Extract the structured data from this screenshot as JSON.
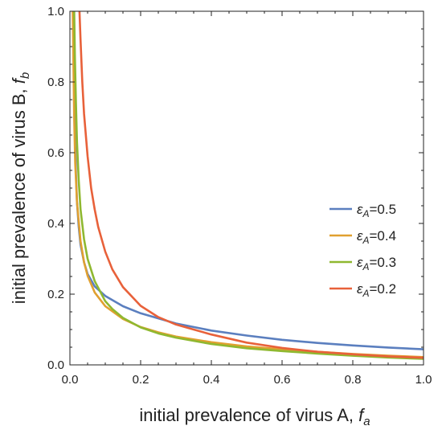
{
  "chart_data": {
    "type": "line",
    "title": "",
    "xlabel": "initial prevalence of virus A, ",
    "xlabel_var": "f",
    "xlabel_sub": "a",
    "ylabel": "initial prevalence of virus B, ",
    "ylabel_var": "f",
    "ylabel_sub": "b",
    "xlim": [
      0,
      1
    ],
    "ylim": [
      0,
      1
    ],
    "x_ticks": [
      "0.0",
      "0.2",
      "0.4",
      "0.6",
      "0.8",
      "1.0"
    ],
    "y_ticks": [
      "0.0",
      "0.2",
      "0.4",
      "0.6",
      "0.8",
      "1.0"
    ],
    "grid": false,
    "legend_position": "center-right",
    "series": [
      {
        "name": "0.5",
        "legend_symbol": "ε",
        "legend_sub": "A",
        "color": "#5b7fbf",
        "points": [
          [
            0.011,
            1.0
          ],
          [
            0.012,
            0.82
          ],
          [
            0.014,
            0.66
          ],
          [
            0.017,
            0.54
          ],
          [
            0.02,
            0.46
          ],
          [
            0.025,
            0.39
          ],
          [
            0.03,
            0.34
          ],
          [
            0.04,
            0.29
          ],
          [
            0.05,
            0.257
          ],
          [
            0.07,
            0.222
          ],
          [
            0.1,
            0.195
          ],
          [
            0.15,
            0.166
          ],
          [
            0.2,
            0.146
          ],
          [
            0.3,
            0.117
          ],
          [
            0.4,
            0.097
          ],
          [
            0.5,
            0.083
          ],
          [
            0.6,
            0.071
          ],
          [
            0.7,
            0.062
          ],
          [
            0.8,
            0.055
          ],
          [
            0.9,
            0.049
          ],
          [
            1.0,
            0.044
          ]
        ]
      },
      {
        "name": "0.4",
        "legend_symbol": "ε",
        "legend_sub": "A",
        "color": "#e0a030",
        "points": [
          [
            0.008,
            1.0
          ],
          [
            0.01,
            0.85
          ],
          [
            0.012,
            0.7
          ],
          [
            0.015,
            0.57
          ],
          [
            0.02,
            0.46
          ],
          [
            0.03,
            0.35
          ],
          [
            0.04,
            0.29
          ],
          [
            0.05,
            0.252
          ],
          [
            0.07,
            0.205
          ],
          [
            0.1,
            0.166
          ],
          [
            0.15,
            0.13
          ],
          [
            0.2,
            0.107
          ],
          [
            0.25,
            0.092
          ],
          [
            0.3,
            0.08
          ],
          [
            0.4,
            0.064
          ],
          [
            0.5,
            0.052
          ],
          [
            0.6,
            0.044
          ],
          [
            0.7,
            0.037
          ],
          [
            0.8,
            0.031
          ],
          [
            0.9,
            0.026
          ],
          [
            1.0,
            0.022
          ]
        ]
      },
      {
        "name": "0.3",
        "legend_symbol": "ε",
        "legend_sub": "A",
        "color": "#8fb830",
        "points": [
          [
            0.012,
            1.0
          ],
          [
            0.014,
            0.87
          ],
          [
            0.017,
            0.74
          ],
          [
            0.02,
            0.63
          ],
          [
            0.025,
            0.52
          ],
          [
            0.03,
            0.44
          ],
          [
            0.04,
            0.355
          ],
          [
            0.05,
            0.3
          ],
          [
            0.07,
            0.237
          ],
          [
            0.1,
            0.18
          ],
          [
            0.12,
            0.158
          ],
          [
            0.15,
            0.133
          ],
          [
            0.2,
            0.106
          ],
          [
            0.25,
            0.089
          ],
          [
            0.3,
            0.077
          ],
          [
            0.4,
            0.059
          ],
          [
            0.5,
            0.047
          ],
          [
            0.6,
            0.039
          ],
          [
            0.7,
            0.032
          ],
          [
            0.8,
            0.026
          ],
          [
            0.9,
            0.021
          ],
          [
            1.0,
            0.017
          ]
        ]
      },
      {
        "name": "0.2",
        "legend_symbol": "ε",
        "legend_sub": "A",
        "color": "#e8613a",
        "points": [
          [
            0.027,
            1.0
          ],
          [
            0.03,
            0.92
          ],
          [
            0.035,
            0.8
          ],
          [
            0.04,
            0.71
          ],
          [
            0.05,
            0.59
          ],
          [
            0.06,
            0.5
          ],
          [
            0.07,
            0.44
          ],
          [
            0.08,
            0.39
          ],
          [
            0.1,
            0.32
          ],
          [
            0.12,
            0.27
          ],
          [
            0.15,
            0.22
          ],
          [
            0.2,
            0.167
          ],
          [
            0.25,
            0.135
          ],
          [
            0.3,
            0.114
          ],
          [
            0.35,
            0.1
          ],
          [
            0.4,
            0.086
          ],
          [
            0.5,
            0.063
          ],
          [
            0.6,
            0.048
          ],
          [
            0.7,
            0.037
          ],
          [
            0.8,
            0.03
          ],
          [
            0.9,
            0.024
          ],
          [
            1.0,
            0.02
          ]
        ]
      }
    ]
  }
}
